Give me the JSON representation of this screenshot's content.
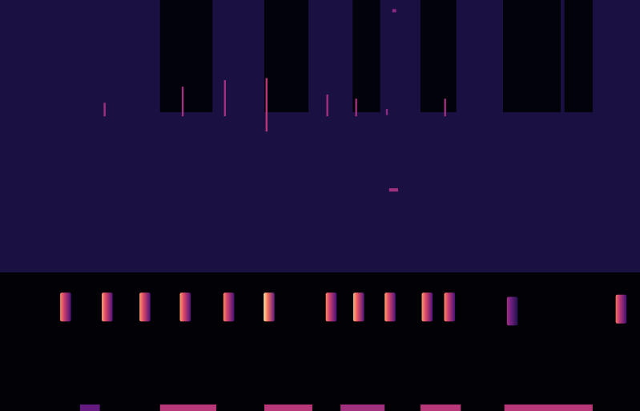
{
  "chart_data": {
    "type": "spectrogram",
    "tick_labels": false,
    "xlim": [
      0,
      100
    ],
    "ylim": [
      0,
      100
    ],
    "zlim": [
      0,
      1
    ],
    "regions": [
      {
        "x0": 0,
        "x1": 100,
        "y0": 0,
        "y1": 33.7,
        "intensity": 0.01
      },
      {
        "x0": 0,
        "x1": 100,
        "y0": 33.7,
        "y1": 100,
        "intensity": 0.12
      },
      {
        "x0": 25.0,
        "x1": 33.2,
        "y0": 72.7,
        "y1": 100,
        "intensity": 0.02
      },
      {
        "x0": 41.3,
        "x1": 48.2,
        "y0": 72.7,
        "y1": 100,
        "intensity": 0.02
      },
      {
        "x0": 55.1,
        "x1": 59.4,
        "y0": 72.7,
        "y1": 100,
        "intensity": 0.02
      },
      {
        "x0": 65.7,
        "x1": 71.3,
        "y0": 72.7,
        "y1": 100,
        "intensity": 0.02
      },
      {
        "x0": 78.6,
        "x1": 87.6,
        "y0": 72.7,
        "y1": 100,
        "intensity": 0.02
      },
      {
        "x0": 88.2,
        "x1": 92.6,
        "y0": 72.7,
        "y1": 100,
        "intensity": 0.02
      },
      {
        "x0": 12.5,
        "x1": 15.6,
        "y0": 0,
        "y1": 1.6,
        "intensity": 0.3
      },
      {
        "x0": 25.0,
        "x1": 33.8,
        "y0": 0,
        "y1": 1.6,
        "intensity": 0.5
      },
      {
        "x0": 41.3,
        "x1": 48.8,
        "y0": 0,
        "y1": 1.6,
        "intensity": 0.5
      },
      {
        "x0": 53.2,
        "x1": 60.1,
        "y0": 0,
        "y1": 1.6,
        "intensity": 0.45
      },
      {
        "x0": 65.7,
        "x1": 72.0,
        "y0": 0,
        "y1": 1.6,
        "intensity": 0.5
      },
      {
        "x0": 78.8,
        "x1": 92.6,
        "y0": 0,
        "y1": 1.6,
        "intensity": 0.5
      },
      {
        "x0": 16.2,
        "x1": 16.5,
        "y0": 71.7,
        "y1": 75.0,
        "intensity": 0.45
      },
      {
        "x0": 28.4,
        "x1": 28.7,
        "y0": 71.7,
        "y1": 78.9,
        "intensity": 0.45
      },
      {
        "x0": 35.0,
        "x1": 35.3,
        "y0": 71.7,
        "y1": 80.5,
        "intensity": 0.45
      },
      {
        "x0": 41.5,
        "x1": 41.8,
        "y0": 68.0,
        "y1": 81.0,
        "intensity": 0.5
      },
      {
        "x0": 51.0,
        "x1": 51.3,
        "y0": 71.7,
        "y1": 77.0,
        "intensity": 0.45
      },
      {
        "x0": 55.5,
        "x1": 55.8,
        "y0": 71.7,
        "y1": 76.0,
        "intensity": 0.45
      },
      {
        "x0": 60.3,
        "x1": 60.6,
        "y0": 72.0,
        "y1": 73.5,
        "intensity": 0.4
      },
      {
        "x0": 69.4,
        "x1": 69.7,
        "y0": 71.7,
        "y1": 76.0,
        "intensity": 0.45
      },
      {
        "x0": 60.8,
        "x1": 62.2,
        "y0": 53.4,
        "y1": 54.2,
        "intensity": 0.45
      },
      {
        "x0": 61.3,
        "x1": 61.9,
        "y0": 97.0,
        "y1": 97.8,
        "intensity": 0.4
      }
    ],
    "pulses": {
      "x": [
        9.4,
        15.9,
        21.8,
        28.1,
        34.9,
        41.2,
        50.9,
        55.2,
        60.1,
        65.9,
        69.4,
        79.2,
        96.2
      ],
      "y": [
        25.3,
        25.3,
        25.3,
        25.3,
        25.3,
        25.3,
        25.3,
        25.3,
        25.3,
        25.3,
        25.3,
        24.3,
        24.8
      ],
      "intensity": [
        0.75,
        0.8,
        0.8,
        0.8,
        0.75,
        0.95,
        0.75,
        0.85,
        0.8,
        0.8,
        0.75,
        0.45,
        0.7
      ],
      "pulse_width": 1.7,
      "pulse_height": 7
    }
  }
}
